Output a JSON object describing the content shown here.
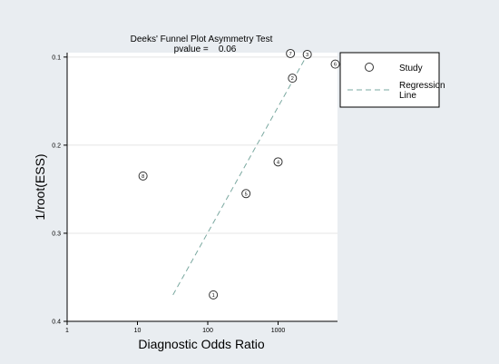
{
  "chart_data": {
    "type": "scatter",
    "title": "Deeks' Funnel Plot Asymmetry Test",
    "subtitle": "pvalue =    0.06",
    "xlabel": "Diagnostic Odds Ratio",
    "ylabel": "1/root(ESS)",
    "x_scale": "log10",
    "y_reversed": true,
    "xlim": [
      1,
      7000
    ],
    "ylim": [
      0.4,
      0.095
    ],
    "x_ticks": [
      {
        "value": 1,
        "label": "1"
      },
      {
        "value": 10,
        "label": "10"
      },
      {
        "value": 100,
        "label": "100"
      },
      {
        "value": 1000,
        "label": "1000"
      }
    ],
    "y_ticks": [
      {
        "value": 0.1,
        "label": "0.1"
      },
      {
        "value": 0.2,
        "label": "0.2"
      },
      {
        "value": 0.3,
        "label": "0.3"
      },
      {
        "value": 0.4,
        "label": "0.4"
      }
    ],
    "grid": "horizontal",
    "legend_position": "right",
    "legend": [
      {
        "name": "Study",
        "marker": "circle"
      },
      {
        "name": "Regression Line",
        "lines": [
          "Regression",
          "Line"
        ],
        "style": "dashed"
      }
    ],
    "points": [
      {
        "label": "1",
        "x": 120,
        "y": 0.37
      },
      {
        "label": "2",
        "x": 1600,
        "y": 0.124
      },
      {
        "label": "3",
        "x": 2600,
        "y": 0.097
      },
      {
        "label": "4",
        "x": 1000,
        "y": 0.219
      },
      {
        "label": "5",
        "x": 350,
        "y": 0.255
      },
      {
        "label": "6",
        "x": 6500,
        "y": 0.108
      },
      {
        "label": "7",
        "x": 1500,
        "y": 0.096
      },
      {
        "label": "8",
        "x": 12,
        "y": 0.235
      }
    ],
    "regression_line": {
      "x": [
        32,
        2700
      ],
      "y": [
        0.37,
        0.095
      ]
    },
    "colors": {
      "background": "#e9edf1",
      "plot_area": "#ffffff",
      "marker": "#333333",
      "regression": "#7aa8a0"
    }
  }
}
